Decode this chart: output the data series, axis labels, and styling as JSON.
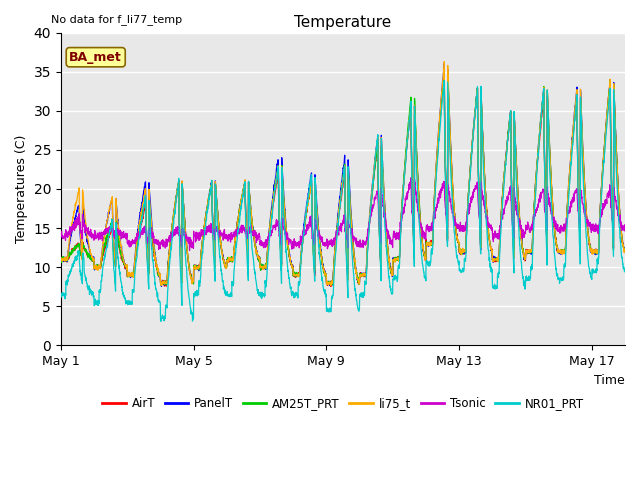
{
  "title": "Temperature",
  "subtitle": "No data for f_li77_temp",
  "ylabel": "Temperatures (C)",
  "xlabel": "Time",
  "ylim": [
    0,
    40
  ],
  "xlim": [
    0,
    17
  ],
  "yticks": [
    0,
    5,
    10,
    15,
    20,
    25,
    30,
    35,
    40
  ],
  "xtick_labels": [
    "May 1",
    "May 5",
    "May 9",
    "May 13",
    "May 17"
  ],
  "xtick_positions": [
    0,
    4,
    8,
    12,
    16
  ],
  "legend_labels": [
    "AirT",
    "PanelT",
    "AM25T_PRT",
    "li75_t",
    "Tsonic",
    "NR01_PRT"
  ],
  "legend_colors": [
    "#ff0000",
    "#0000ff",
    "#00cc00",
    "#ffaa00",
    "#cc00cc",
    "#00cccc"
  ],
  "annotation": "BA_met",
  "plot_bg_color": "#e8e8e8",
  "fig_bg_color": "#ffffff",
  "grid_color": "#ffffff"
}
